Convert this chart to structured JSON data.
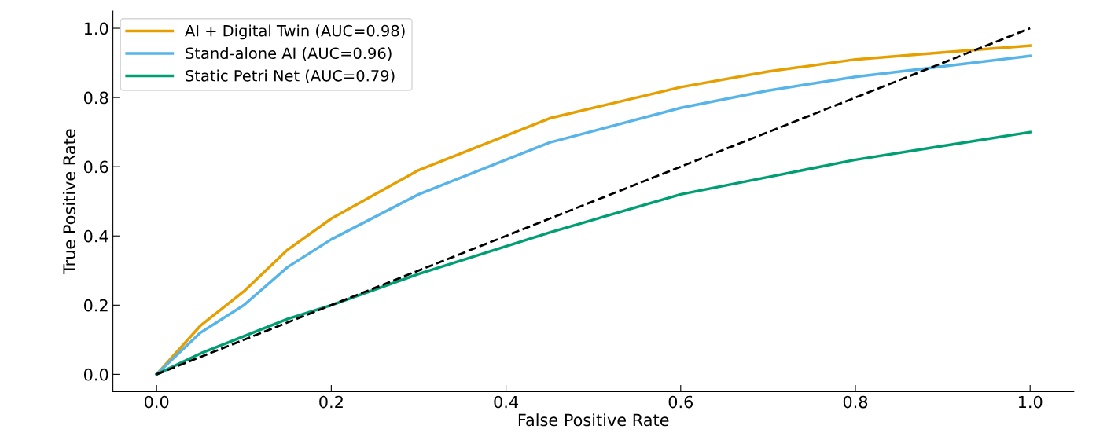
{
  "chart_data": {
    "type": "line",
    "xlabel": "False Positive Rate",
    "ylabel": "True Positive Rate",
    "x": [
      0,
      0.05,
      0.1,
      0.15,
      0.2,
      0.3,
      0.45,
      0.6,
      0.7,
      0.8,
      0.9,
      1.0
    ],
    "series": [
      {
        "name": "AI + Digital Twin (AUC=0.98)",
        "color": "#e69f00",
        "values": [
          0,
          0.14,
          0.24,
          0.36,
          0.45,
          0.59,
          0.74,
          0.83,
          0.875,
          0.91,
          0.93,
          0.95
        ]
      },
      {
        "name": "Stand-alone AI (AUC=0.96)",
        "color": "#56b4e9",
        "values": [
          0,
          0.12,
          0.2,
          0.31,
          0.39,
          0.52,
          0.67,
          0.77,
          0.82,
          0.86,
          0.89,
          0.92
        ]
      },
      {
        "name": "Static Petri Net (AUC=0.79)",
        "color": "#009e73",
        "values": [
          0,
          0.06,
          0.11,
          0.16,
          0.2,
          0.29,
          0.41,
          0.52,
          0.57,
          0.62,
          0.66,
          0.7
        ]
      },
      {
        "x": [
          0,
          1
        ],
        "color": "#000000",
        "line_style": "dashed",
        "values": [
          0,
          1
        ]
      }
    ],
    "xlim": [
      -0.05,
      1.05
    ],
    "ylim": [
      -0.05,
      1.05
    ],
    "xticks": [
      {
        "value": 0,
        "label": "0.0"
      },
      0.2,
      0.4,
      0.6,
      0.8,
      {
        "value": 1,
        "label": "1.0"
      }
    ],
    "yticks": [
      {
        "value": 0,
        "label": "0.0"
      },
      0.2,
      0.4,
      0.6,
      0.8,
      {
        "value": 1,
        "label": "1.0"
      }
    ],
    "grid": false,
    "legend": "top left"
  }
}
